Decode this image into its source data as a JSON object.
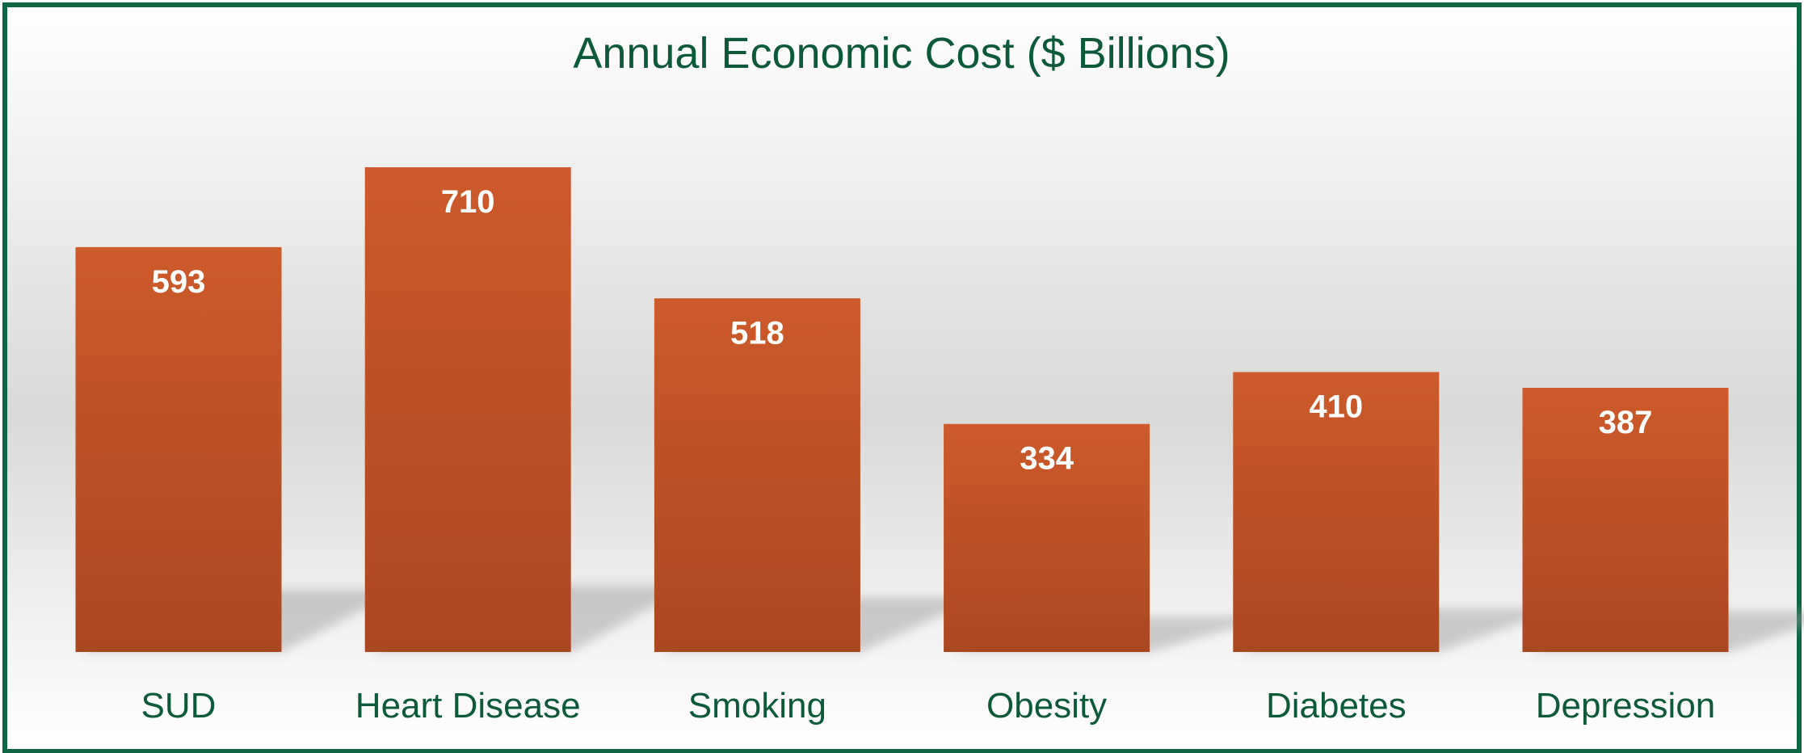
{
  "chart_data": {
    "type": "bar",
    "title": "Annual Economic Cost ($ Billions)",
    "categories": [
      "SUD",
      "Heart Disease",
      "Smoking",
      "Obesity",
      "Diabetes",
      "Depression"
    ],
    "values": [
      593,
      710,
      518,
      334,
      410,
      387
    ],
    "data_labels": [
      "593",
      "710",
      "518",
      "334",
      "410",
      "387"
    ],
    "xlabel": "",
    "ylabel": "",
    "ylim": [
      0,
      800
    ],
    "grid": false,
    "legend": "none",
    "colors": {
      "bar_top": "#cd5a2a",
      "bar_bottom": "#aa4822",
      "title": "#0d5a3a",
      "label": "#0d5a3a",
      "border": "#0f6645",
      "value_text": "#ffffff"
    }
  }
}
